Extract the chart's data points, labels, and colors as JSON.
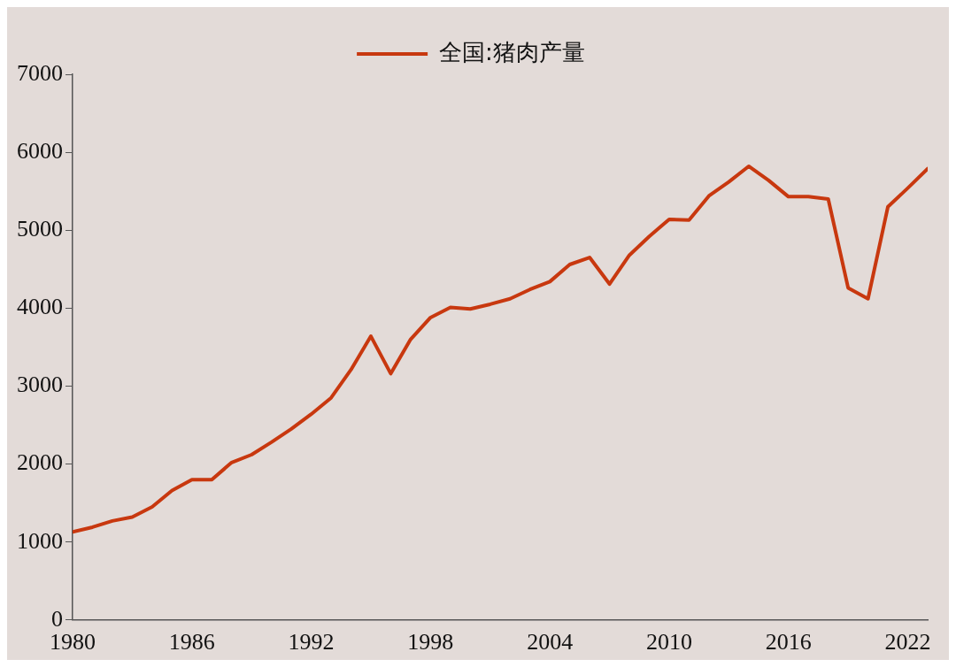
{
  "chart_data": {
    "type": "line",
    "x": [
      1980,
      1981,
      1982,
      1983,
      1984,
      1985,
      1986,
      1987,
      1988,
      1989,
      1990,
      1991,
      1992,
      1993,
      1994,
      1995,
      1996,
      1997,
      1998,
      1999,
      2000,
      2001,
      2002,
      2003,
      2004,
      2005,
      2006,
      2007,
      2008,
      2009,
      2010,
      2011,
      2012,
      2013,
      2014,
      2015,
      2016,
      2017,
      2018,
      2019,
      2020,
      2021,
      2022,
      2023
    ],
    "series": [
      {
        "name": "全国:猪肉产量",
        "color": "#c8380f",
        "values": [
          1130,
          1190,
          1270,
          1320,
          1450,
          1660,
          1800,
          1800,
          2020,
          2120,
          2280,
          2450,
          2640,
          2850,
          3210,
          3640,
          3160,
          3600,
          3880,
          4010,
          3990,
          4050,
          4120,
          4240,
          4340,
          4560,
          4650,
          4310,
          4680,
          4920,
          5140,
          5130,
          5440,
          5620,
          5820,
          5640,
          5430,
          5430,
          5400,
          4260,
          4120,
          5300,
          5540,
          5790
        ]
      }
    ],
    "xlim": [
      1980,
      2023
    ],
    "xticks": [
      1980,
      1986,
      1992,
      1998,
      2004,
      2010,
      2016,
      2022
    ],
    "ylim": [
      0,
      7000
    ],
    "yticks": [
      0,
      1000,
      2000,
      3000,
      4000,
      5000,
      6000,
      7000
    ],
    "grid": false,
    "legend": "top",
    "marker": "none",
    "line_style": "solid"
  }
}
